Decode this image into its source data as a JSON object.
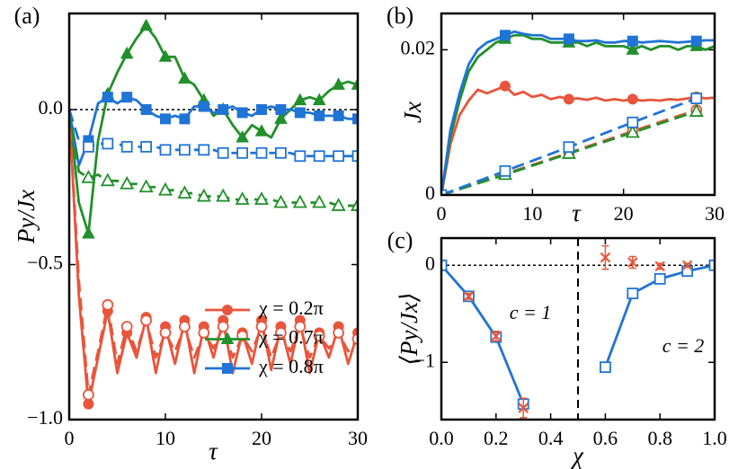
{
  "chart_data": [
    {
      "type": "line",
      "panel_label": "(a)",
      "xlabel": "τ",
      "ylabel": "Py/Jx",
      "xlim": [
        0,
        30
      ],
      "ylim": [
        -1.0,
        0.31
      ],
      "xticks": [
        0,
        10,
        20,
        30
      ],
      "yticks": [
        {
          "value": -1.0,
          "label": "−1.0"
        },
        {
          "value": -0.5,
          "label": "−0.5"
        },
        {
          "value": 0,
          "label": "0.0"
        }
      ],
      "hlines": [
        0
      ],
      "legend": "lower right",
      "x": [
        0,
        1,
        2,
        3,
        4,
        5,
        6,
        7,
        8,
        9,
        10,
        11,
        12,
        13,
        14,
        15,
        16,
        17,
        18,
        19,
        20,
        21,
        22,
        23,
        24,
        25,
        26,
        27,
        28,
        29,
        30
      ],
      "series": [
        {
          "name": "χ = 0.2π",
          "color": "#e8553b",
          "style": "solid",
          "marker": "circle",
          "marker_fill": "full",
          "values": [
            0,
            -0.6,
            -0.95,
            -0.8,
            -0.65,
            -0.85,
            -0.72,
            -0.8,
            -0.67,
            -0.85,
            -0.7,
            -0.82,
            -0.68,
            -0.85,
            -0.7,
            -0.8,
            -0.68,
            -0.85,
            -0.72,
            -0.82,
            -0.68,
            -0.84,
            -0.7,
            -0.82,
            -0.68,
            -0.85,
            -0.72,
            -0.8,
            -0.7,
            -0.82,
            -0.72
          ]
        },
        {
          "name": "χ = 0.7π",
          "color": "#22902a",
          "style": "solid",
          "marker": "triangle",
          "marker_fill": "full",
          "values": [
            0,
            -0.3,
            -0.4,
            -0.1,
            0.05,
            0.12,
            0.18,
            0.23,
            0.27,
            0.23,
            0.17,
            0.17,
            0.1,
            0.08,
            0.03,
            -0.02,
            0,
            -0.05,
            -0.09,
            -0.05,
            -0.07,
            -0.09,
            -0.03,
            0,
            0.03,
            0.04,
            0.03,
            0.06,
            0.08,
            0.09,
            0.08
          ]
        },
        {
          "name": "χ = 0.8π",
          "color": "#1f74d6",
          "style": "solid",
          "marker": "square",
          "marker_fill": "full",
          "values": [
            0,
            -0.18,
            -0.1,
            0.02,
            0.04,
            0.02,
            0.04,
            0.03,
            0,
            -0.02,
            -0.03,
            -0.02,
            -0.03,
            0.01,
            0.01,
            -0.01,
            0,
            0.01,
            -0.01,
            -0.02,
            0,
            0.01,
            0,
            0,
            -0.01,
            -0.01,
            -0.02,
            -0.02,
            -0.02,
            -0.03,
            -0.03
          ]
        },
        {
          "color": "#e8553b",
          "style": "dashed",
          "marker": "circle",
          "marker_fill": "open",
          "values": [
            0,
            -0.55,
            -0.92,
            -0.78,
            -0.63,
            -0.82,
            -0.7,
            -0.78,
            -0.68,
            -0.8,
            -0.72,
            -0.78,
            -0.7,
            -0.8,
            -0.72,
            -0.77,
            -0.7,
            -0.8,
            -0.73,
            -0.78,
            -0.7,
            -0.8,
            -0.72,
            -0.78,
            -0.7,
            -0.8,
            -0.73,
            -0.77,
            -0.72,
            -0.78,
            -0.74
          ]
        },
        {
          "color": "#22902a",
          "style": "dashed",
          "marker": "triangle",
          "marker_fill": "open",
          "values": [
            0,
            -0.2,
            -0.22,
            -0.21,
            -0.23,
            -0.23,
            -0.24,
            -0.24,
            -0.25,
            -0.25,
            -0.26,
            -0.26,
            -0.27,
            -0.27,
            -0.28,
            -0.28,
            -0.28,
            -0.29,
            -0.29,
            -0.29,
            -0.29,
            -0.29,
            -0.3,
            -0.3,
            -0.3,
            -0.3,
            -0.3,
            -0.3,
            -0.31,
            -0.31,
            -0.31
          ]
        },
        {
          "color": "#1f74d6",
          "style": "dashed",
          "marker": "square",
          "marker_fill": "open",
          "values": [
            0,
            -0.1,
            -0.12,
            -0.11,
            -0.11,
            -0.11,
            -0.12,
            -0.12,
            -0.12,
            -0.12,
            -0.13,
            -0.13,
            -0.13,
            -0.13,
            -0.13,
            -0.13,
            -0.14,
            -0.14,
            -0.14,
            -0.14,
            -0.14,
            -0.14,
            -0.14,
            -0.14,
            -0.15,
            -0.15,
            -0.15,
            -0.15,
            -0.15,
            -0.15,
            -0.15
          ]
        }
      ]
    },
    {
      "type": "line",
      "panel_label": "(b)",
      "xlabel": "τ",
      "ylabel": "Jx",
      "xlim": [
        0,
        30
      ],
      "ylim": [
        0,
        0.025
      ],
      "xticks": [
        0,
        10,
        20,
        30
      ],
      "yticks": [
        0,
        0.02
      ],
      "x": [
        0,
        1,
        2,
        3,
        4,
        5,
        6,
        7,
        8,
        9,
        10,
        11,
        12,
        13,
        14,
        15,
        16,
        17,
        18,
        19,
        20,
        21,
        22,
        23,
        24,
        25,
        26,
        27,
        28,
        29,
        30
      ],
      "series": [
        {
          "color": "#e8553b",
          "style": "solid",
          "marker": "circle",
          "marker_fill": "full",
          "values": [
            0,
            0.007,
            0.011,
            0.013,
            0.0145,
            0.014,
            0.0145,
            0.015,
            0.0138,
            0.0142,
            0.0135,
            0.0138,
            0.0132,
            0.0135,
            0.0132,
            0.0133,
            0.0131,
            0.0134,
            0.013,
            0.0132,
            0.013,
            0.0132,
            0.013,
            0.0131,
            0.013,
            0.0132,
            0.0131,
            0.0133,
            0.0135,
            0.0133,
            0.0134
          ]
        },
        {
          "color": "#22902a",
          "style": "solid",
          "marker": "triangle",
          "marker_fill": "full",
          "values": [
            0,
            0.008,
            0.013,
            0.017,
            0.019,
            0.02,
            0.021,
            0.0215,
            0.022,
            0.022,
            0.0215,
            0.0215,
            0.021,
            0.021,
            0.021,
            0.021,
            0.0205,
            0.021,
            0.0205,
            0.0205,
            0.0205,
            0.02,
            0.0205,
            0.02,
            0.0205,
            0.0205,
            0.02,
            0.0205,
            0.0205,
            0.02,
            0.0205
          ]
        },
        {
          "color": "#1f74d6",
          "style": "solid",
          "marker": "square",
          "marker_fill": "full",
          "values": [
            0,
            0.009,
            0.014,
            0.018,
            0.02,
            0.021,
            0.0215,
            0.022,
            0.0225,
            0.0222,
            0.022,
            0.022,
            0.0215,
            0.0215,
            0.0215,
            0.0212,
            0.0212,
            0.0213,
            0.021,
            0.021,
            0.0212,
            0.0212,
            0.021,
            0.0211,
            0.0212,
            0.0211,
            0.021,
            0.0211,
            0.0212,
            0.0213,
            0.0213
          ]
        },
        {
          "color": "#e8553b",
          "style": "dashed",
          "marker": "circle",
          "marker_fill": "open",
          "x": [
            0,
            7,
            14,
            21,
            28
          ],
          "values": [
            0,
            0.0029,
            0.0058,
            0.0088,
            0.0117
          ]
        },
        {
          "color": "#22902a",
          "style": "dashed",
          "marker": "triangle",
          "marker_fill": "open",
          "x": [
            0,
            7,
            14,
            21,
            28
          ],
          "values": [
            0,
            0.0028,
            0.0057,
            0.0086,
            0.0115
          ]
        },
        {
          "color": "#1f74d6",
          "style": "dashed",
          "marker": "square",
          "marker_fill": "open",
          "x": [
            0,
            7,
            14,
            21,
            28
          ],
          "values": [
            0,
            0.0033,
            0.0066,
            0.01,
            0.0133
          ]
        }
      ]
    },
    {
      "type": "line",
      "panel_label": "(c)",
      "xlabel": "χ",
      "ylabel": "⟨Py/Jx⟩",
      "xlim": [
        0,
        1
      ],
      "ylim": [
        -1.59,
        0.28
      ],
      "xticks": [
        {
          "value": 0,
          "label": "0.0"
        },
        0.2,
        0.4,
        0.6,
        0.8,
        {
          "value": 1,
          "label": "1.0"
        }
      ],
      "yticks": [
        {
          "value": -1,
          "label": "−1"
        },
        0
      ],
      "hlines": [
        0
      ],
      "vlines": [
        0.5
      ],
      "annotations": [
        "c = 1",
        "c = 2"
      ],
      "series": [
        {
          "color": "#1f74d6",
          "style": "solid",
          "marker": "square",
          "marker_fill": "open",
          "x": [
            0,
            0.1,
            0.2,
            0.3,
            0.4,
            0.5,
            0.6,
            0.7,
            0.8,
            0.9,
            1.0
          ],
          "values": [
            0,
            -0.32,
            -0.74,
            -1.43,
            null,
            null,
            -1.05,
            -0.29,
            -0.14,
            -0.06,
            0
          ]
        },
        {
          "color": "#e8553b",
          "style": "none",
          "marker": "x",
          "marker_fill": "full",
          "x": [
            0.1,
            0.2,
            0.3,
            0.6,
            0.7,
            0.8,
            0.9
          ],
          "values": [
            -0.32,
            -0.73,
            -1.47,
            0.08,
            0.03,
            -0.01,
            0.0
          ],
          "errors": [
            0.03,
            0.05,
            0.1,
            0.12,
            0.06,
            0.03,
            0.02
          ]
        }
      ]
    }
  ]
}
